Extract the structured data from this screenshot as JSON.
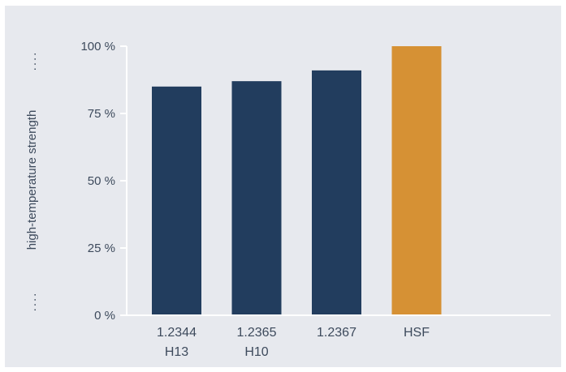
{
  "chart_data": {
    "type": "bar",
    "title": "",
    "xlabel": "",
    "ylabel": "high-temperature strength",
    "ylim": [
      0,
      100
    ],
    "yticks": [
      0,
      25,
      50,
      75,
      100
    ],
    "ytick_labels": [
      "0 %",
      "25 %",
      "50 %",
      "75 %",
      "100 %"
    ],
    "categories": [
      {
        "line1": "1.2344",
        "line2": "H13"
      },
      {
        "line1": "1.2365",
        "line2": "H10"
      },
      {
        "line1": "1.2367",
        "line2": ""
      },
      {
        "line1": "HSF",
        "line2": ""
      }
    ],
    "values": [
      85,
      87,
      91,
      100
    ],
    "bar_colors": [
      "#223d5e",
      "#223d5e",
      "#223d5e",
      "#d69134"
    ],
    "axis_color": "#ffffff",
    "background": "#e7e9ee",
    "grid": false,
    "legend": "none"
  }
}
